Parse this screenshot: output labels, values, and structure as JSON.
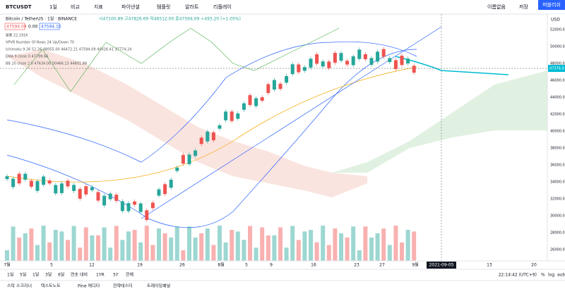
{
  "toolbar": {
    "symbol": "BTCUSDT",
    "interval": "1일",
    "items": [
      "비교",
      "지표",
      "파이낸셜",
      "템플릿",
      "알러트",
      "리플레이"
    ],
    "layout_name": "이름없음",
    "save": "저장",
    "publish": "퍼블리쉬"
  },
  "legend": {
    "title": "Bitcoin / TetherUS · 1일 · BINANCE",
    "ohlc": "시47100.89 고47826.69 저46512.00 종47594.09 +493.20 (+1.05%)",
    "sell": "47594.09",
    "spread": "0.00",
    "buy": "47594.10",
    "indicators": [
      "볼륨 22.191K",
      "VPVR Number Of Rows 24 Up/Down 70",
      "Ichimoku 9 26 52 26 48055.00 46472.21 47594.09 40026.41 37774.24",
      "EMA 9 close 0 47799.66",
      "BB 20 close 2 0 47634.00 50466.13 44801.88"
    ]
  },
  "price_axis": {
    "currency": "USD",
    "ticks": [
      "52000.00",
      "50000.00",
      "48000.00",
      "46000.00",
      "44000.00",
      "42000.00",
      "40000.00",
      "38000.00",
      "36000.00",
      "34000.00",
      "32000.00",
      "30000.00",
      "28000.00",
      "26000.00"
    ],
    "last_price": "47376.0"
  },
  "time_axis": {
    "labels": [
      "7월",
      "5",
      "12",
      "19",
      "26",
      "8월",
      "5",
      "9",
      "16",
      "23",
      "27",
      "9월",
      "13",
      "20"
    ],
    "cursor": "2021-09-05"
  },
  "bottom_bar": {
    "ranges": [
      "1일",
      "5일",
      "1달",
      "3달",
      "6달",
      "연초 대비",
      "1YR",
      "5Y",
      "전체"
    ],
    "clock": "22:14:42 (UTC+9)",
    "options": [
      "%",
      "log",
      "auto"
    ]
  },
  "tabs": [
    "스탁 스크리너",
    "텍스트노트",
    "Pine 에디터",
    "전략테스터",
    "트레이딩패널"
  ]
}
